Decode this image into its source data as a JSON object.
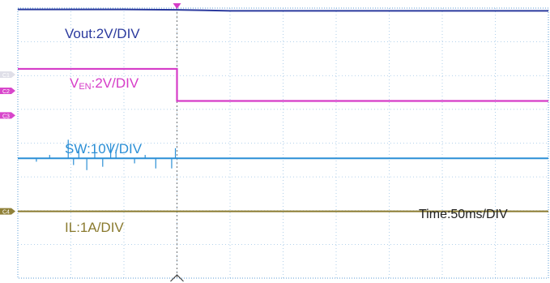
{
  "chart_data": {
    "type": "line",
    "title": "",
    "time_label": "Time:50ms/DIV",
    "x_divisions": 10,
    "y_divisions": 8,
    "trigger_division": 3,
    "colors": {
      "vout": "#2b3a9e",
      "ven": "#d63cc8",
      "sw": "#2b8fd6",
      "il": "#8a7a2e",
      "grid": "#5a9bd4",
      "marker_text": "#c9c9d8"
    },
    "series": [
      {
        "name_prefix": "Vout",
        "name_sub": "",
        "name_suffix": ":2V/DIV",
        "key": "vout",
        "levels_div": [
          0.04,
          0.04,
          0.04,
          0.05,
          0.08,
          0.08,
          0.08,
          0.08,
          0.08,
          0.08,
          0.08
        ]
      },
      {
        "name_prefix": "V",
        "name_sub": "EN",
        "name_suffix": ":2V/DIV",
        "key": "ven",
        "step_at_div": 3.0,
        "before_div": 1.8,
        "after_div": 2.75
      },
      {
        "name_prefix": "SW",
        "name_sub": "",
        "name_suffix": ":10V/DIV",
        "key": "sw",
        "baseline_div": 4.45,
        "spikes": [
          {
            "x": 0.95,
            "h": -0.55
          },
          {
            "x": 1.05,
            "h": 0.2
          },
          {
            "x": 1.15,
            "h": -0.3
          },
          {
            "x": 1.3,
            "h": 0.35
          },
          {
            "x": 1.45,
            "h": -0.4
          },
          {
            "x": 1.6,
            "h": 0.25
          },
          {
            "x": 1.75,
            "h": -0.45
          },
          {
            "x": 1.85,
            "h": -0.25
          },
          {
            "x": 2.2,
            "h": 0.15
          },
          {
            "x": 2.6,
            "h": 0.3
          },
          {
            "x": 2.9,
            "h": 0.3
          },
          {
            "x": 2.97,
            "h": -0.3
          },
          {
            "x": 0.35,
            "h": 0.1
          },
          {
            "x": 0.6,
            "h": -0.1
          },
          {
            "x": 2.4,
            "h": -0.1
          }
        ]
      },
      {
        "name_prefix": "IL",
        "name_sub": "",
        "name_suffix": ":1A/DIV",
        "key": "il",
        "baseline_div": 6.02
      }
    ],
    "ch_markers": [
      {
        "text": "C1",
        "y_div": 1.97
      },
      {
        "text": "C2",
        "y_div": 2.45
      },
      {
        "text": "C3",
        "y_div": 3.18
      },
      {
        "text": "C4",
        "y_div": 6.02
      }
    ]
  }
}
